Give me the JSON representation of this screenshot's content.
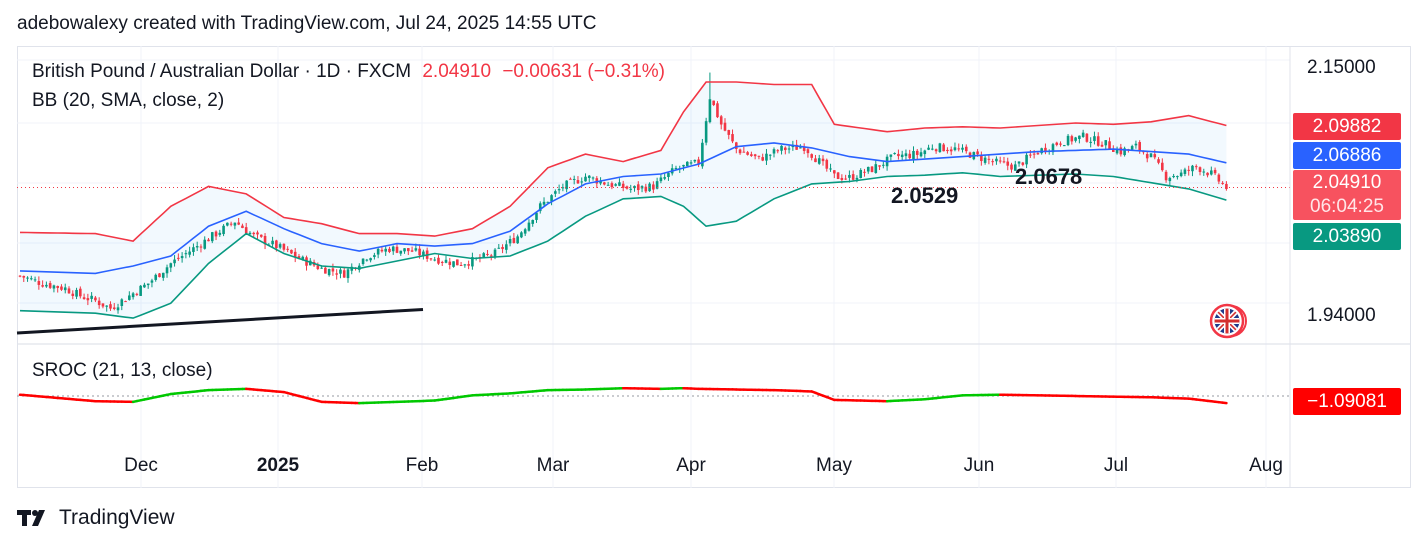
{
  "header": {
    "text": "adebowalexy created with TradingView.com, Jul 24, 2025 14:55 UTC"
  },
  "legend": {
    "symbol": "British Pound / Australian Dollar · 1D · FXCM",
    "last": "2.04910",
    "change": "−0.00631 (−0.31%)",
    "bb": "BB (20, SMA, close, 2)",
    "sroc": "SROC (21, 13, close)"
  },
  "price_axis": {
    "top": "2.15000",
    "bottom": "1.94000"
  },
  "tags": {
    "upper": {
      "value": "2.09882",
      "color": "#f23645"
    },
    "basis": {
      "value": "2.06886",
      "color": "#2962ff"
    },
    "last": {
      "value": "2.04910",
      "countdown": "06:04:25",
      "color": "#f7525f"
    },
    "lower": {
      "value": "2.03890",
      "color": "#089981"
    },
    "sroc": {
      "value": "−1.09081",
      "color": "#ff0000"
    }
  },
  "annotations": {
    "a1": "2.0529",
    "a2": "2.0678"
  },
  "brand": {
    "name": "TradingView"
  },
  "colors": {
    "up": "#089981",
    "down": "#f23645",
    "bb_fill": "#2196f3",
    "sroc_up": "#00c800",
    "sroc_down": "#ff0000"
  },
  "chart_data": {
    "type": "candlestick",
    "title": "British Pound / Australian Dollar · 1D · FXCM",
    "x_labels": [
      "Dec",
      "2025",
      "Feb",
      "Mar",
      "Apr",
      "May",
      "Jun",
      "Jul",
      "Aug"
    ],
    "y_ticks": [
      1.94,
      2.15
    ],
    "ylim": [
      1.924,
      2.163
    ],
    "close_path": [
      [
        0,
        1.978
      ],
      [
        6,
        1.972
      ],
      [
        12,
        1.968
      ],
      [
        16,
        1.962
      ],
      [
        20,
        1.958
      ],
      [
        24,
        1.952
      ],
      [
        28,
        1.96
      ],
      [
        34,
        1.972
      ],
      [
        40,
        1.988
      ],
      [
        46,
        2.0
      ],
      [
        52,
        2.012
      ],
      [
        57,
        2.022
      ],
      [
        62,
        2.01
      ],
      [
        68,
        2.002
      ],
      [
        74,
        1.992
      ],
      [
        80,
        1.984
      ],
      [
        86,
        1.98
      ],
      [
        92,
        1.994
      ],
      [
        98,
        2.0
      ],
      [
        104,
        1.998
      ],
      [
        110,
        1.992
      ],
      [
        116,
        1.988
      ],
      [
        120,
        1.99
      ],
      [
        126,
        1.996
      ],
      [
        132,
        2.01
      ],
      [
        138,
        2.034
      ],
      [
        144,
        2.05
      ],
      [
        150,
        2.058
      ],
      [
        156,
        2.052
      ],
      [
        162,
        2.048
      ],
      [
        168,
        2.05
      ],
      [
        174,
        2.064
      ],
      [
        180,
        2.069
      ],
      [
        183,
        2.122
      ],
      [
        186,
        2.1
      ],
      [
        190,
        2.08
      ],
      [
        196,
        2.072
      ],
      [
        202,
        2.08
      ],
      [
        208,
        2.082
      ],
      [
        212,
        2.07
      ],
      [
        216,
        2.058
      ],
      [
        220,
        2.057
      ],
      [
        226,
        2.064
      ],
      [
        232,
        2.074
      ],
      [
        238,
        2.076
      ],
      [
        242,
        2.082
      ],
      [
        248,
        2.08
      ],
      [
        254,
        2.074
      ],
      [
        260,
        2.068
      ],
      [
        264,
        2.066
      ],
      [
        270,
        2.078
      ],
      [
        276,
        2.086
      ],
      [
        282,
        2.09
      ],
      [
        288,
        2.084
      ],
      [
        292,
        2.078
      ],
      [
        296,
        2.082
      ],
      [
        300,
        2.074
      ],
      [
        304,
        2.058
      ],
      [
        308,
        2.06
      ],
      [
        312,
        2.066
      ],
      [
        316,
        2.06
      ],
      [
        320,
        2.049
      ]
    ],
    "series": [
      {
        "name": "BB upper",
        "values": [
          [
            0,
            2.013
          ],
          [
            20,
            2.012
          ],
          [
            30,
            2.006
          ],
          [
            40,
            2.034
          ],
          [
            50,
            2.05
          ],
          [
            60,
            2.044
          ],
          [
            70,
            2.025
          ],
          [
            80,
            2.02
          ],
          [
            90,
            2.012
          ],
          [
            100,
            2.012
          ],
          [
            110,
            2.01
          ],
          [
            120,
            2.016
          ],
          [
            130,
            2.034
          ],
          [
            140,
            2.065
          ],
          [
            150,
            2.076
          ],
          [
            160,
            2.07
          ],
          [
            170,
            2.079
          ],
          [
            176,
            2.11
          ],
          [
            182,
            2.134
          ],
          [
            190,
            2.134
          ],
          [
            200,
            2.132
          ],
          [
            210,
            2.132
          ],
          [
            216,
            2.1
          ],
          [
            230,
            2.094
          ],
          [
            240,
            2.097
          ],
          [
            250,
            2.098
          ],
          [
            260,
            2.097
          ],
          [
            270,
            2.099
          ],
          [
            280,
            2.101
          ],
          [
            290,
            2.1
          ],
          [
            300,
            2.102
          ],
          [
            310,
            2.107
          ],
          [
            320,
            2.099
          ]
        ]
      },
      {
        "name": "BB basis",
        "values": [
          [
            0,
            1.982
          ],
          [
            20,
            1.98
          ],
          [
            30,
            1.986
          ],
          [
            40,
            1.994
          ],
          [
            50,
            2.018
          ],
          [
            60,
            2.03
          ],
          [
            70,
            2.016
          ],
          [
            80,
            2.004
          ],
          [
            90,
            1.998
          ],
          [
            100,
            2.004
          ],
          [
            110,
            2.002
          ],
          [
            120,
            2.004
          ],
          [
            130,
            2.014
          ],
          [
            140,
            2.036
          ],
          [
            150,
            2.052
          ],
          [
            160,
            2.058
          ],
          [
            170,
            2.06
          ],
          [
            180,
            2.068
          ],
          [
            190,
            2.082
          ],
          [
            200,
            2.085
          ],
          [
            210,
            2.081
          ],
          [
            220,
            2.074
          ],
          [
            230,
            2.07
          ],
          [
            240,
            2.072
          ],
          [
            250,
            2.074
          ],
          [
            260,
            2.076
          ],
          [
            270,
            2.078
          ],
          [
            280,
            2.079
          ],
          [
            290,
            2.08
          ],
          [
            300,
            2.078
          ],
          [
            310,
            2.076
          ],
          [
            320,
            2.069
          ]
        ]
      },
      {
        "name": "BB lower",
        "values": [
          [
            0,
            1.95
          ],
          [
            20,
            1.948
          ],
          [
            30,
            1.944
          ],
          [
            40,
            1.956
          ],
          [
            50,
            1.988
          ],
          [
            60,
            2.012
          ],
          [
            70,
            1.996
          ],
          [
            80,
            1.986
          ],
          [
            90,
            1.984
          ],
          [
            100,
            1.99
          ],
          [
            110,
            1.996
          ],
          [
            120,
            1.992
          ],
          [
            130,
            1.994
          ],
          [
            140,
            2.006
          ],
          [
            150,
            2.026
          ],
          [
            160,
            2.04
          ],
          [
            170,
            2.042
          ],
          [
            176,
            2.034
          ],
          [
            182,
            2.018
          ],
          [
            190,
            2.022
          ],
          [
            200,
            2.04
          ],
          [
            210,
            2.052
          ],
          [
            220,
            2.054
          ],
          [
            230,
            2.058
          ],
          [
            240,
            2.059
          ],
          [
            250,
            2.061
          ],
          [
            260,
            2.058
          ],
          [
            270,
            2.059
          ],
          [
            280,
            2.06
          ],
          [
            290,
            2.058
          ],
          [
            300,
            2.053
          ],
          [
            310,
            2.048
          ],
          [
            320,
            2.039
          ]
        ]
      },
      {
        "name": "SROC",
        "values": [
          [
            0,
            0.2
          ],
          [
            20,
            -0.8
          ],
          [
            30,
            -0.9
          ],
          [
            40,
            0.3
          ],
          [
            50,
            0.9
          ],
          [
            60,
            1.1
          ],
          [
            70,
            0.6
          ],
          [
            80,
            -0.9
          ],
          [
            90,
            -1.1
          ],
          [
            100,
            -0.9
          ],
          [
            110,
            -0.7
          ],
          [
            120,
            0.1
          ],
          [
            130,
            0.4
          ],
          [
            140,
            0.9
          ],
          [
            150,
            1.0
          ],
          [
            160,
            1.2
          ],
          [
            170,
            1.1
          ],
          [
            176,
            1.2
          ],
          [
            180,
            1.1
          ],
          [
            190,
            1.0
          ],
          [
            200,
            0.9
          ],
          [
            210,
            0.7
          ],
          [
            216,
            -0.6
          ],
          [
            230,
            -0.8
          ],
          [
            240,
            -0.5
          ],
          [
            250,
            0.1
          ],
          [
            260,
            0.2
          ],
          [
            270,
            0.1
          ],
          [
            280,
            0.0
          ],
          [
            290,
            -0.1
          ],
          [
            300,
            -0.2
          ],
          [
            310,
            -0.4
          ],
          [
            320,
            -1.09
          ]
        ]
      }
    ]
  }
}
